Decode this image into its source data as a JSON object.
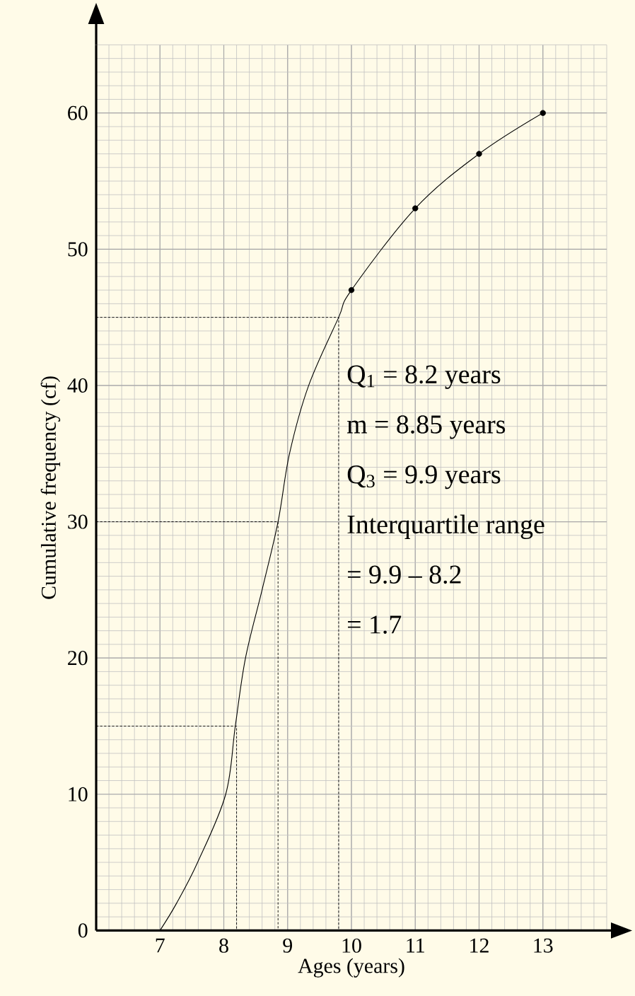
{
  "chart_data": {
    "type": "line",
    "xlabel": "Ages (years)",
    "ylabel": "Cumulative frequency (cf)",
    "xlim": [
      6,
      14
    ],
    "ylim": [
      0,
      65
    ],
    "xticks": [
      7,
      8,
      9,
      10,
      11,
      12,
      13
    ],
    "yticks": [
      0,
      10,
      20,
      30,
      40,
      50,
      60
    ],
    "grid": true,
    "annotations": [
      "Q$_{1}$ = 8.2 years",
      "m = 8.85 years",
      "Q$_{3}$ = 9.9 years",
      "Interquartile range",
      "= 9.9 – 8.2",
      "= 1.7"
    ],
    "series": [
      {
        "color": "#000000",
        "marker": "none",
        "line_style": "solid",
        "x": [
          7,
          7.26,
          7.59,
          8.03,
          8.18,
          8.34,
          8.6,
          8.85,
          9.03,
          9.33,
          9.8,
          10,
          11,
          12,
          13
        ],
        "values": [
          0,
          2,
          5,
          10,
          15,
          20,
          25,
          30,
          35,
          40,
          45,
          47,
          53,
          57,
          60
        ]
      },
      {
        "type": "scatter",
        "color": "#000000",
        "marker": "circle",
        "x": [
          10,
          11,
          12,
          13
        ],
        "values": [
          47,
          53,
          57,
          60
        ]
      },
      {
        "type": "line",
        "color": "#000000",
        "marker": "none",
        "line_style": "dashed",
        "x": [
          6,
          8.2,
          8.2
        ],
        "values": [
          15,
          15,
          0
        ]
      },
      {
        "type": "line",
        "color": "#000000",
        "marker": "none",
        "line_style": "dashed",
        "x": [
          6,
          8.85,
          8.85
        ],
        "values": [
          30,
          30,
          0
        ]
      },
      {
        "type": "line",
        "color": "#000000",
        "marker": "none",
        "line_style": "dashed",
        "x": [
          6,
          9.8,
          9.8
        ],
        "values": [
          45,
          45,
          0
        ]
      }
    ]
  }
}
